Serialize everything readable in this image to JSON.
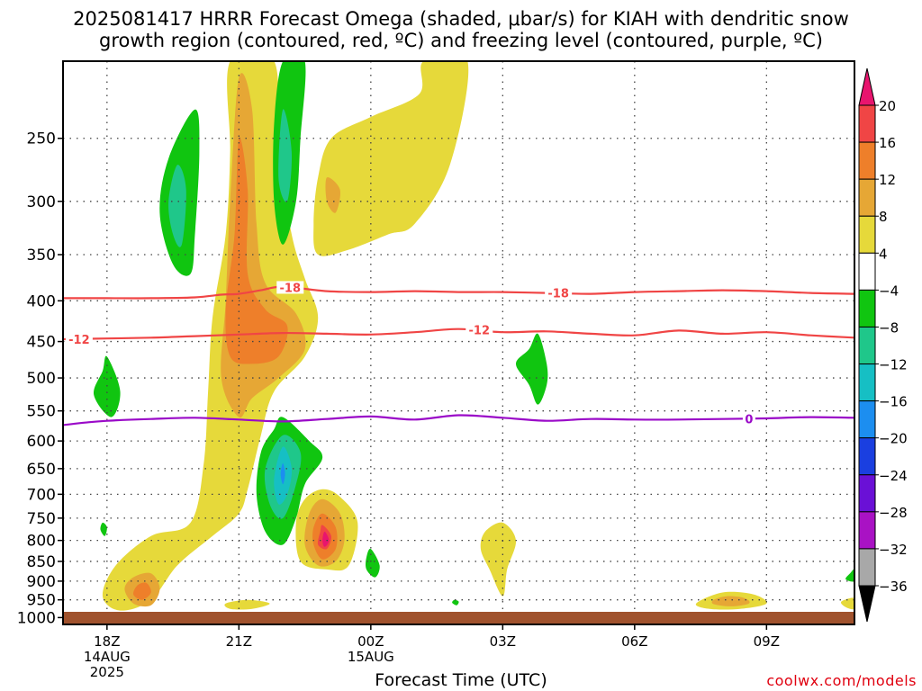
{
  "title_line1": "2025081417 HRRR Forecast Omega (shaded, μbar/s) for KIAH with dendritic snow",
  "title_line2": "growth region (contoured, red, ºC) and freezing level (contoured, purple, ºC)",
  "credit": "coolwx.com/models",
  "chart_data": {
    "type": "heatmap",
    "title": "2025081417 HRRR Forecast Omega (shaded, μbar/s) for KIAH with dendritic snow growth region (contoured, red, ºC) and freezing level (contoured, purple, ºC)",
    "xlabel": "Forecast Time (UTC)",
    "ylabel": "",
    "x_unit": "hours since 2025-08-14 17Z",
    "xlim": [
      0,
      18
    ],
    "ylim_hpa": [
      1020,
      200
    ],
    "y_scale": "log",
    "grid": true,
    "y_ticks": [
      250,
      300,
      350,
      400,
      450,
      500,
      550,
      600,
      650,
      700,
      750,
      800,
      850,
      900,
      950,
      1000
    ],
    "x_ticks": [
      {
        "x": 1,
        "label": "18Z",
        "sub1": "14AUG",
        "sub2": "2025"
      },
      {
        "x": 4,
        "label": "21Z",
        "sub1": "",
        "sub2": ""
      },
      {
        "x": 7,
        "label": "00Z",
        "sub1": "15AUG",
        "sub2": ""
      },
      {
        "x": 10,
        "label": "03Z",
        "sub1": "",
        "sub2": ""
      },
      {
        "x": 13,
        "label": "06Z",
        "sub1": "",
        "sub2": ""
      },
      {
        "x": 16,
        "label": "09Z",
        "sub1": "",
        "sub2": ""
      }
    ],
    "colorbar": {
      "labels": [
        "20",
        "16",
        "12",
        "8",
        "4",
        "−4",
        "−8",
        "−12",
        "−16",
        "−20",
        "−24",
        "−28",
        "−32",
        "−36"
      ],
      "colors": [
        "#e8156e",
        "#f04545",
        "#ee7f2a",
        "#e6a735",
        "#e6d93a",
        "#ffffff",
        "#10c510",
        "#1fc78a",
        "#16bfc4",
        "#1c8ef0",
        "#1a3fe0",
        "#6a10d6",
        "#a912c4",
        "#a8a8a8",
        "#000000"
      ]
    },
    "contours": [
      {
        "name": "dendritic_-18",
        "color": "#f04545",
        "label": "-18",
        "label_x": [
          4.9,
          11
        ],
        "x": [
          0,
          1,
          2,
          3,
          3.6,
          4,
          4.5,
          5,
          6,
          7,
          8,
          9,
          10,
          11,
          12,
          13,
          14,
          15,
          16,
          17,
          18
        ],
        "p": [
          397,
          397,
          397,
          396,
          393,
          392,
          388,
          384,
          389,
          390,
          389,
          390,
          390,
          391,
          392,
          390,
          389,
          388,
          389,
          391,
          392
        ]
      },
      {
        "name": "dendritic_-12",
        "color": "#f04545",
        "label": "-12",
        "label_x": [
          0.1,
          9.2
        ],
        "x": [
          0,
          1,
          2,
          3,
          4,
          5,
          6,
          7,
          8,
          9,
          10,
          11,
          12,
          13,
          14,
          15,
          16,
          17,
          18
        ],
        "p": [
          447,
          446,
          445,
          443,
          441,
          439,
          440,
          441,
          438,
          434,
          438,
          437,
          440,
          442,
          436,
          440,
          438,
          442,
          445
        ]
      },
      {
        "name": "freezing_level_0",
        "color": "#9a0ac8",
        "label": "0",
        "label_x": [
          15.5
        ],
        "x": [
          0,
          0.5,
          1,
          2,
          3,
          4,
          5,
          6,
          7,
          8,
          9,
          10,
          11,
          12,
          13,
          14,
          15,
          16,
          17,
          18
        ],
        "p": [
          573,
          569,
          566,
          563,
          561,
          564,
          567,
          563,
          559,
          564,
          557,
          561,
          566,
          563,
          564,
          564,
          563,
          562,
          560,
          561
        ]
      }
    ],
    "shaded_regions": [
      {
        "level": "4 to 8",
        "color": "#e6d93a",
        "points": [
          [
            3.8,
            200
          ],
          [
            4.8,
            200
          ],
          [
            4.9,
            260
          ],
          [
            5.2,
            330
          ],
          [
            5.5,
            375
          ],
          [
            5.8,
            420
          ],
          [
            5.5,
            470
          ],
          [
            4.8,
            520
          ],
          [
            4.5,
            590
          ],
          [
            4.2,
            690
          ],
          [
            4.0,
            740
          ],
          [
            3.4,
            790
          ],
          [
            2.6,
            860
          ],
          [
            2.0,
            950
          ],
          [
            1.3,
            980
          ],
          [
            0.9,
            940
          ],
          [
            1.2,
            860
          ],
          [
            2.0,
            790
          ],
          [
            2.9,
            760
          ],
          [
            3.2,
            640
          ],
          [
            3.3,
            520
          ],
          [
            3.4,
            420
          ],
          [
            3.7,
            330
          ],
          [
            3.8,
            260
          ]
        ]
      },
      {
        "level": "4 to 8",
        "color": "#e6d93a",
        "points": [
          [
            5.7,
            320
          ],
          [
            5.8,
            280
          ],
          [
            6.1,
            250
          ],
          [
            7.0,
            235
          ],
          [
            8.1,
            220
          ],
          [
            8.2,
            200
          ],
          [
            9.2,
            200
          ],
          [
            8.8,
            270
          ],
          [
            8.0,
            320
          ],
          [
            7.4,
            330
          ],
          [
            6.5,
            345
          ],
          [
            5.8,
            350
          ]
        ]
      },
      {
        "level": "4 to 8",
        "color": "#e6d93a",
        "points": [
          [
            5.9,
            690
          ],
          [
            6.3,
            705
          ],
          [
            6.7,
            760
          ],
          [
            6.5,
            860
          ],
          [
            6.0,
            870
          ],
          [
            5.4,
            850
          ],
          [
            5.3,
            760
          ],
          [
            5.5,
            710
          ]
        ]
      },
      {
        "level": "4 to 8",
        "color": "#e6d93a",
        "points": [
          [
            9.6,
            780
          ],
          [
            10.0,
            760
          ],
          [
            10.3,
            800
          ],
          [
            10.1,
            870
          ],
          [
            10.0,
            940
          ],
          [
            9.7,
            870
          ],
          [
            9.5,
            820
          ]
        ]
      },
      {
        "level": "4 to 8",
        "color": "#e6d93a",
        "points": [
          [
            3.7,
            960
          ],
          [
            4.2,
            950
          ],
          [
            4.7,
            960
          ],
          [
            4.3,
            975
          ],
          [
            3.8,
            975
          ]
        ]
      },
      {
        "level": "4 to 8",
        "color": "#e6d93a",
        "points": [
          [
            14.4,
            960
          ],
          [
            15.0,
            930
          ],
          [
            15.7,
            935
          ],
          [
            16.0,
            960
          ],
          [
            15.4,
            975
          ],
          [
            14.7,
            975
          ]
        ]
      },
      {
        "level": "4 to 8",
        "color": "#e6d93a",
        "points": [
          [
            17.7,
            955
          ],
          [
            18.0,
            945
          ],
          [
            18.0,
            975
          ],
          [
            17.8,
            970
          ]
        ]
      },
      {
        "level": "8 to 12",
        "color": "#e6a735",
        "points": [
          [
            4.0,
            210
          ],
          [
            4.3,
            230
          ],
          [
            4.4,
            320
          ],
          [
            4.6,
            380
          ],
          [
            5.3,
            415
          ],
          [
            5.5,
            460
          ],
          [
            4.9,
            500
          ],
          [
            4.3,
            530
          ],
          [
            4.0,
            560
          ],
          [
            3.6,
            500
          ],
          [
            3.7,
            400
          ],
          [
            3.8,
            300
          ]
        ]
      },
      {
        "level": "8 to 12",
        "color": "#e6a735",
        "points": [
          [
            5.9,
            710
          ],
          [
            6.3,
            740
          ],
          [
            6.4,
            800
          ],
          [
            6.2,
            850
          ],
          [
            5.8,
            860
          ],
          [
            5.5,
            810
          ],
          [
            5.6,
            740
          ]
        ]
      },
      {
        "level": "8 to 12",
        "color": "#e6a735",
        "points": [
          [
            1.6,
            890
          ],
          [
            2.0,
            880
          ],
          [
            2.2,
            920
          ],
          [
            2.0,
            965
          ],
          [
            1.6,
            960
          ],
          [
            1.4,
            920
          ]
        ]
      },
      {
        "level": "8 to 12",
        "color": "#e6a735",
        "points": [
          [
            14.8,
            950
          ],
          [
            15.1,
            940
          ],
          [
            15.5,
            945
          ],
          [
            15.6,
            960
          ],
          [
            15.2,
            968
          ],
          [
            14.8,
            962
          ]
        ]
      },
      {
        "level": "8 to 12",
        "color": "#e6a735",
        "points": [
          [
            6.0,
            280
          ],
          [
            6.3,
            290
          ],
          [
            6.2,
            310
          ],
          [
            6.0,
            300
          ]
        ]
      },
      {
        "level": "12 to 16",
        "color": "#ee7f2a",
        "points": [
          [
            4.0,
            250
          ],
          [
            4.2,
            290
          ],
          [
            4.2,
            370
          ],
          [
            4.6,
            410
          ],
          [
            5.1,
            430
          ],
          [
            4.9,
            470
          ],
          [
            4.3,
            480
          ],
          [
            3.8,
            470
          ],
          [
            3.7,
            410
          ],
          [
            3.9,
            330
          ]
        ]
      },
      {
        "level": "12 to 16",
        "color": "#ee7f2a",
        "points": [
          [
            5.9,
            740
          ],
          [
            6.2,
            770
          ],
          [
            6.2,
            820
          ],
          [
            5.9,
            845
          ],
          [
            5.7,
            810
          ],
          [
            5.7,
            770
          ]
        ]
      },
      {
        "level": "12 to 16",
        "color": "#ee7f2a",
        "points": [
          [
            1.7,
            910
          ],
          [
            1.9,
            905
          ],
          [
            2.0,
            930
          ],
          [
            1.8,
            950
          ],
          [
            1.6,
            935
          ]
        ]
      },
      {
        "level": "16 to 20",
        "color": "#f04545",
        "points": [
          [
            5.9,
            765
          ],
          [
            6.1,
            790
          ],
          [
            6.0,
            820
          ],
          [
            5.8,
            810
          ],
          [
            5.85,
            780
          ]
        ]
      },
      {
        "level": "20+",
        "color": "#e8156e",
        "points": [
          [
            5.95,
            780
          ],
          [
            6.05,
            800
          ],
          [
            5.95,
            815
          ],
          [
            5.9,
            800
          ]
        ]
      },
      {
        "level": "-4 to -8",
        "color": "#10c510",
        "points": [
          [
            5.0,
            200
          ],
          [
            5.5,
            200
          ],
          [
            5.4,
            250
          ],
          [
            5.3,
            300
          ],
          [
            5.0,
            340
          ],
          [
            4.8,
            300
          ],
          [
            4.8,
            240
          ]
        ]
      },
      {
        "level": "-4 to -8",
        "color": "#10c510",
        "points": [
          [
            3.0,
            230
          ],
          [
            3.1,
            260
          ],
          [
            3.0,
            330
          ],
          [
            2.9,
            370
          ],
          [
            2.5,
            360
          ],
          [
            2.2,
            310
          ],
          [
            2.4,
            265
          ]
        ]
      },
      {
        "level": "-4 to -8",
        "color": "#10c510",
        "points": [
          [
            5.0,
            560
          ],
          [
            5.6,
            600
          ],
          [
            5.9,
            630
          ],
          [
            5.5,
            680
          ],
          [
            5.3,
            750
          ],
          [
            5.0,
            810
          ],
          [
            4.6,
            780
          ],
          [
            4.4,
            700
          ],
          [
            4.5,
            620
          ],
          [
            4.8,
            580
          ]
        ]
      },
      {
        "level": "-4 to -8",
        "color": "#10c510",
        "points": [
          [
            1.0,
            470
          ],
          [
            1.3,
            520
          ],
          [
            1.1,
            560
          ],
          [
            0.7,
            525
          ],
          [
            0.9,
            490
          ]
        ]
      },
      {
        "level": "-4 to -8",
        "color": "#10c510",
        "points": [
          [
            10.8,
            440
          ],
          [
            11.0,
            480
          ],
          [
            11.0,
            510
          ],
          [
            10.8,
            540
          ],
          [
            10.6,
            510
          ],
          [
            10.3,
            480
          ],
          [
            10.6,
            460
          ]
        ]
      },
      {
        "level": "-4 to -8",
        "color": "#10c510",
        "points": [
          [
            7.0,
            820
          ],
          [
            7.2,
            860
          ],
          [
            7.1,
            890
          ],
          [
            6.9,
            870
          ],
          [
            6.9,
            840
          ]
        ]
      },
      {
        "level": "-4 to -8",
        "color": "#10c510",
        "points": [
          [
            0.9,
            760
          ],
          [
            1.0,
            770
          ],
          [
            0.95,
            790
          ],
          [
            0.85,
            775
          ]
        ]
      },
      {
        "level": "-4 to -8",
        "color": "#10c510",
        "points": [
          [
            8.9,
            950
          ],
          [
            9.0,
            955
          ],
          [
            8.95,
            965
          ],
          [
            8.85,
            958
          ]
        ]
      },
      {
        "level": "-4 to -8",
        "color": "#10c510",
        "points": [
          [
            17.9,
            880
          ],
          [
            18.0,
            870
          ],
          [
            18.0,
            900
          ],
          [
            17.8,
            895
          ]
        ]
      },
      {
        "level": "-8 to -12",
        "color": "#1fc78a",
        "points": [
          [
            5.0,
            230
          ],
          [
            5.2,
            260
          ],
          [
            5.1,
            300
          ],
          [
            4.9,
            280
          ]
        ]
      },
      {
        "level": "-8 to -12",
        "color": "#1fc78a",
        "points": [
          [
            2.6,
            270
          ],
          [
            2.8,
            290
          ],
          [
            2.7,
            340
          ],
          [
            2.5,
            330
          ],
          [
            2.4,
            300
          ]
        ]
      },
      {
        "level": "-8 to -12",
        "color": "#1fc78a",
        "points": [
          [
            5.0,
            590
          ],
          [
            5.4,
            620
          ],
          [
            5.3,
            680
          ],
          [
            5.0,
            750
          ],
          [
            4.7,
            720
          ],
          [
            4.6,
            650
          ]
        ]
      },
      {
        "level": "-12 to -16",
        "color": "#16bfc4",
        "points": [
          [
            5.0,
            610
          ],
          [
            5.2,
            650
          ],
          [
            5.1,
            700
          ],
          [
            4.9,
            720
          ],
          [
            4.8,
            670
          ]
        ]
      },
      {
        "level": "-16 to -20",
        "color": "#1c8ef0",
        "points": [
          [
            5.0,
            640
          ],
          [
            5.05,
            660
          ],
          [
            5.0,
            680
          ],
          [
            4.95,
            660
          ]
        ]
      }
    ]
  }
}
